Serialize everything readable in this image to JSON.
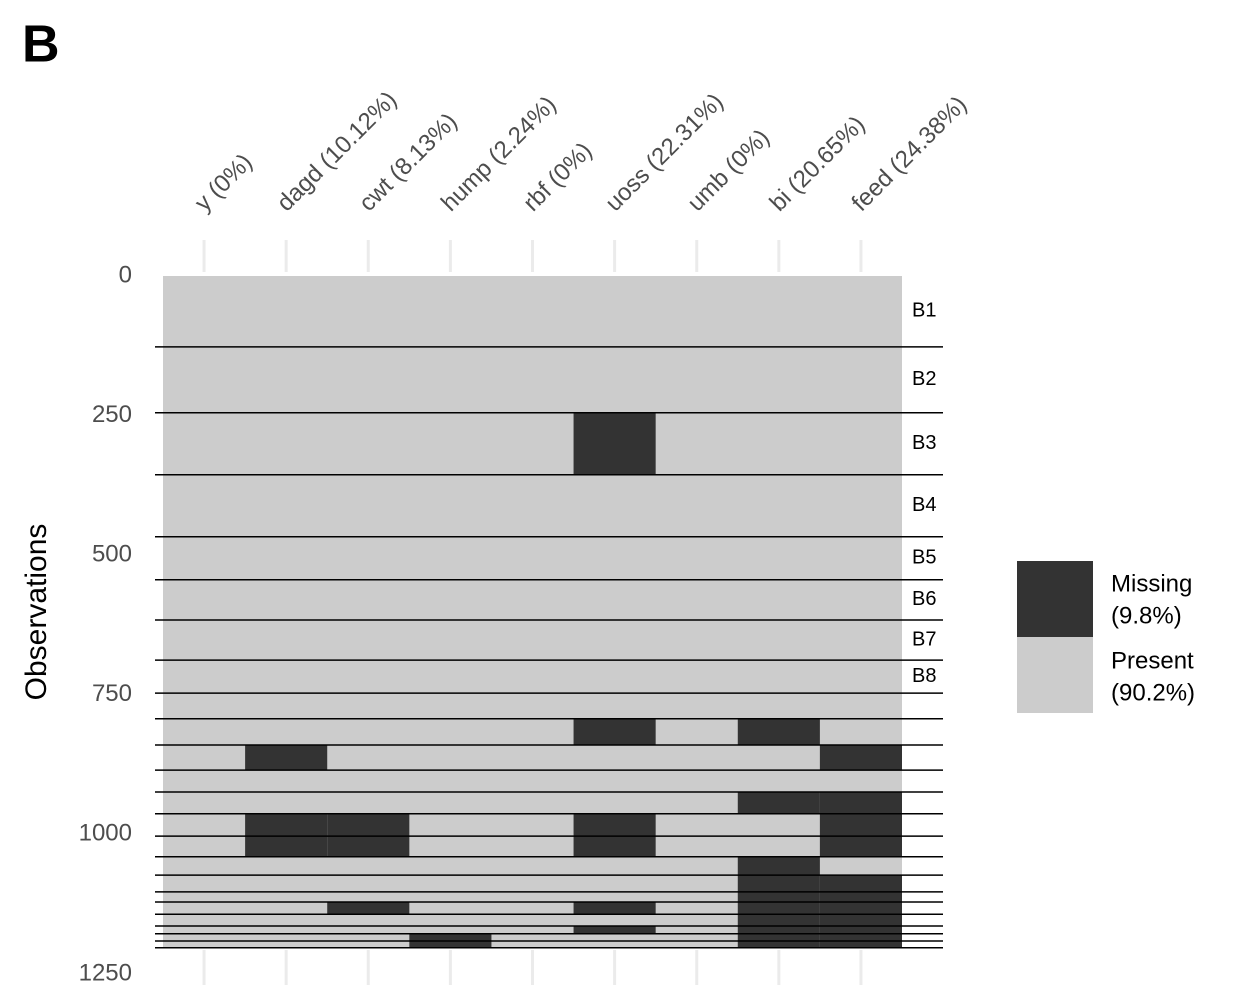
{
  "chart_data": {
    "type": "missingness-heatmap",
    "panel_label": "B",
    "y_label": "Observations",
    "columns": [
      "y (0%)",
      "dagd (10.12%)",
      "cwt (8.13%)",
      "hump (2.24%)",
      "rbf (0%)",
      "uoss (22.31%)",
      "umb (0%)",
      "bi (20.65%)",
      "feed (24.38%)"
    ],
    "ylim": [
      0,
      1250
    ],
    "yticks": [
      0,
      250,
      500,
      750,
      1000,
      1250
    ],
    "colors": {
      "missing": "#333333",
      "present": "#cccccc"
    },
    "legend": {
      "missing": [
        "Missing",
        "(9.8%)"
      ],
      "present": [
        "Present",
        "(90.2%)"
      ]
    },
    "blocks": [
      {
        "label": "B1",
        "start": 0,
        "end": 127,
        "missing": []
      },
      {
        "label": "B2",
        "start": 127,
        "end": 245,
        "missing": []
      },
      {
        "label": "B3",
        "start": 245,
        "end": 356,
        "missing": [
          5
        ]
      },
      {
        "label": "B4",
        "start": 356,
        "end": 467,
        "missing": []
      },
      {
        "label": "B5",
        "start": 467,
        "end": 544,
        "missing": []
      },
      {
        "label": "B6",
        "start": 544,
        "end": 616,
        "missing": []
      },
      {
        "label": "B7",
        "start": 616,
        "end": 688,
        "missing": []
      },
      {
        "label": "B8",
        "start": 688,
        "end": 747,
        "missing": []
      },
      {
        "start": 747,
        "end": 793,
        "missing": []
      },
      {
        "start": 793,
        "end": 840,
        "missing": [
          5,
          7
        ]
      },
      {
        "start": 840,
        "end": 885,
        "missing": [
          1,
          8
        ]
      },
      {
        "start": 885,
        "end": 924,
        "missing": []
      },
      {
        "start": 924,
        "end": 963,
        "missing": [
          7,
          8
        ]
      },
      {
        "start": 963,
        "end": 1003,
        "missing": [
          1,
          2,
          5,
          8
        ]
      },
      {
        "start": 1003,
        "end": 1040,
        "missing": [
          1,
          2,
          5,
          8
        ]
      },
      {
        "start": 1040,
        "end": 1073,
        "missing": [
          7
        ]
      },
      {
        "start": 1073,
        "end": 1103,
        "missing": [
          7,
          8
        ]
      },
      {
        "start": 1103,
        "end": 1121,
        "missing": [
          7,
          8
        ]
      },
      {
        "start": 1121,
        "end": 1143,
        "missing": [
          2,
          5,
          7,
          8
        ]
      },
      {
        "start": 1143,
        "end": 1164,
        "missing": [
          7,
          8
        ]
      },
      {
        "start": 1164,
        "end": 1178,
        "missing": [
          5,
          7,
          8
        ]
      },
      {
        "start": 1178,
        "end": 1191,
        "missing": [
          3,
          7,
          8
        ]
      },
      {
        "start": 1191,
        "end": 1203,
        "missing": [
          3,
          7,
          8
        ]
      }
    ]
  }
}
